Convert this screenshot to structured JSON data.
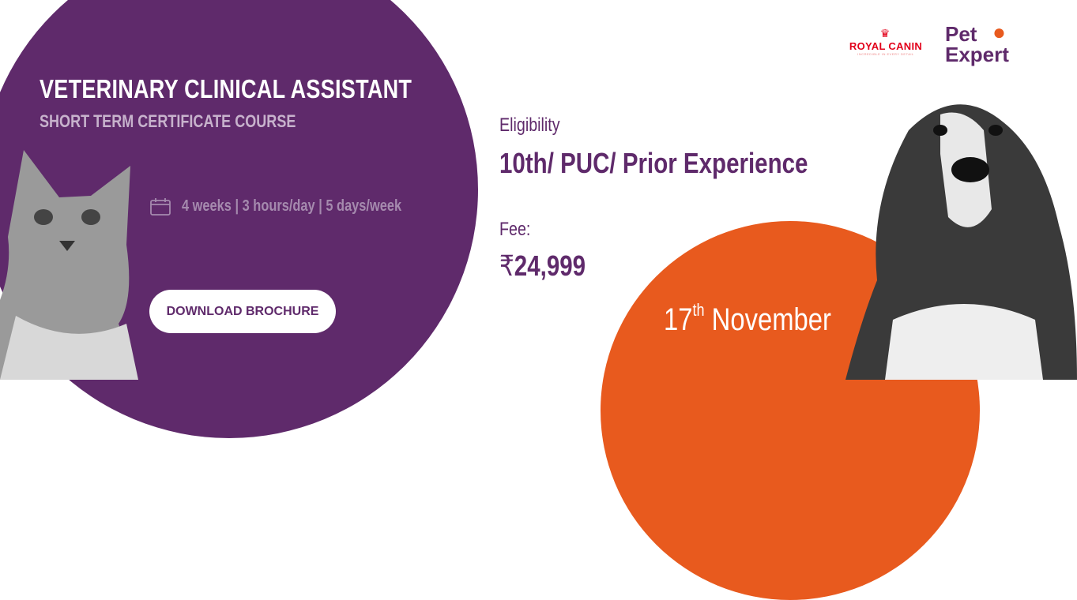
{
  "course": {
    "title": "VETERINARY CLINICAL ASSISTANT",
    "subtitle": "SHORT TERM CERTIFICATE COURSE",
    "schedule": "4 weeks | 3 hours/day | 5 days/week",
    "schedule_icon": "calendar-icon",
    "download_label": "DOWNLOAD BROCHURE"
  },
  "eligibility": {
    "label": "Eligibility",
    "value": "10th/ PUC/ Prior Experience"
  },
  "fee": {
    "label": "Fee:",
    "currency": "₹",
    "value": "24,999"
  },
  "date": {
    "day": "17",
    "suffix": "th",
    "month": "November"
  },
  "logos": {
    "royal_canin": "ROYAL CANIN",
    "royal_canin_tagline": "INCREDIBLE IN EVERY DETAIL",
    "pet_expert_line1": "Pet",
    "pet_expert_line2": "Expert"
  },
  "colors": {
    "purple": "#5f2a6b",
    "orange": "#e85a1e",
    "white": "#ffffff"
  }
}
